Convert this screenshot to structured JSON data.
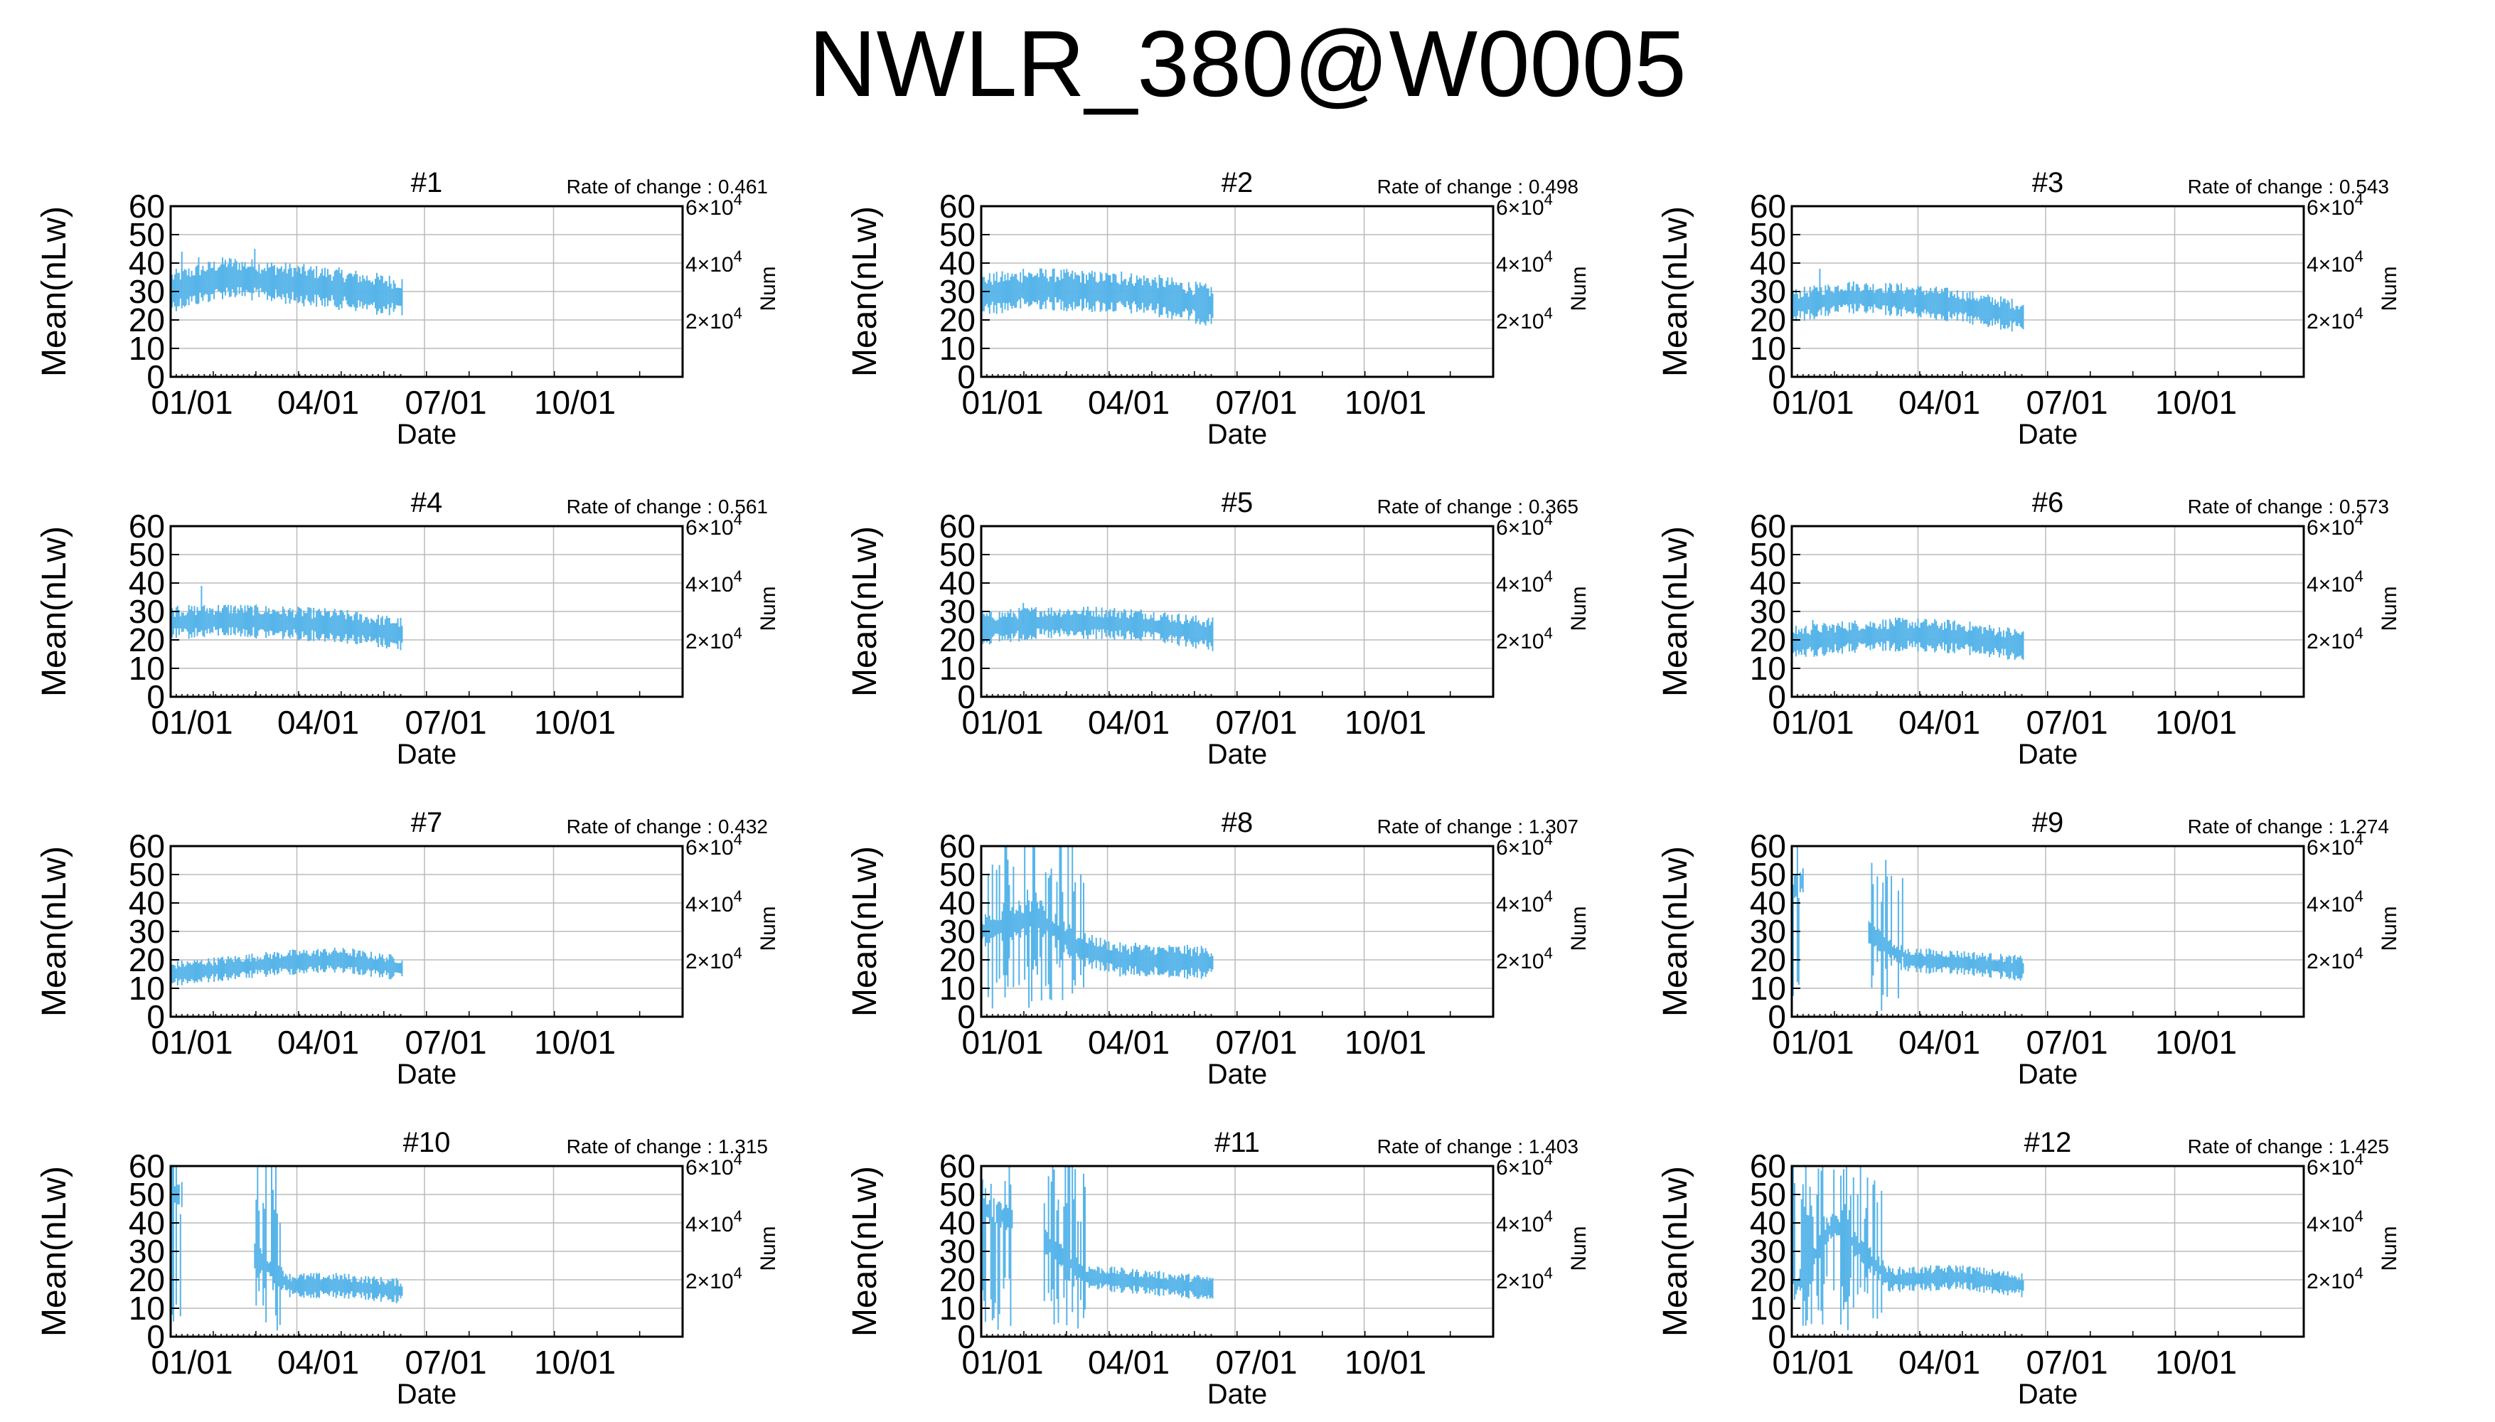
{
  "title": "NWLR_380@W0005",
  "colors": {
    "data": "#56b4e9",
    "grid": "#bbbbbb",
    "axis": "#000000"
  },
  "axes": {
    "xlabel": "Date",
    "ylabel_left": "Mean(nLw)",
    "ylabel_right": "Num",
    "x_ticks": [
      "01/01",
      "04/01",
      "07/01",
      "10/01"
    ],
    "y_ticks": [
      "0",
      "10",
      "20",
      "30",
      "40",
      "50",
      "60"
    ],
    "right_ticks": [
      {
        "base": "2×10",
        "exp": "4"
      },
      {
        "base": "4×10",
        "exp": "4"
      },
      {
        "base": "6×10",
        "exp": "4"
      }
    ]
  },
  "chart_data": [
    {
      "type": "line",
      "title": "#1",
      "rate_label": "Rate of change : 0.461",
      "ylim": [
        0,
        60
      ],
      "xlim_days": [
        0,
        365
      ],
      "end_day": 165,
      "mean": [
        [
          0,
          30
        ],
        [
          40,
          35
        ],
        [
          80,
          33
        ],
        [
          120,
          31
        ],
        [
          165,
          28
        ]
      ],
      "spread": 5,
      "spikes": [
        [
          8,
          44
        ],
        [
          20,
          42
        ],
        [
          60,
          45
        ]
      ]
    },
    {
      "type": "line",
      "title": "#2",
      "rate_label": "Rate of change : 0.498",
      "ylim": [
        0,
        60
      ],
      "xlim_days": [
        0,
        365
      ],
      "end_day": 165,
      "mean": [
        [
          0,
          29
        ],
        [
          40,
          31
        ],
        [
          80,
          30
        ],
        [
          120,
          29
        ],
        [
          165,
          25
        ]
      ],
      "spread": 5,
      "spikes": [
        [
          30,
          38
        ],
        [
          100,
          37
        ]
      ]
    },
    {
      "type": "line",
      "title": "#3",
      "rate_label": "Rate of change : 0.543",
      "ylim": [
        0,
        60
      ],
      "xlim_days": [
        0,
        365
      ],
      "end_day": 165,
      "mean": [
        [
          0,
          25
        ],
        [
          40,
          28
        ],
        [
          80,
          27
        ],
        [
          120,
          25
        ],
        [
          165,
          21
        ]
      ],
      "spread": 4,
      "spikes": [
        [
          20,
          38
        ],
        [
          40,
          33
        ]
      ]
    },
    {
      "type": "line",
      "title": "#4",
      "rate_label": "Rate of change : 0.561",
      "ylim": [
        0,
        60
      ],
      "xlim_days": [
        0,
        365
      ],
      "end_day": 165,
      "mean": [
        [
          0,
          26
        ],
        [
          40,
          27
        ],
        [
          80,
          26
        ],
        [
          120,
          25
        ],
        [
          165,
          22
        ]
      ],
      "spread": 4,
      "spikes": [
        [
          5,
          32
        ],
        [
          22,
          39
        ],
        [
          85,
          30
        ]
      ]
    },
    {
      "type": "line",
      "title": "#5",
      "rate_label": "Rate of change : 0.365",
      "ylim": [
        0,
        60
      ],
      "xlim_days": [
        0,
        365
      ],
      "end_day": 165,
      "mean": [
        [
          0,
          24
        ],
        [
          40,
          26
        ],
        [
          80,
          26
        ],
        [
          120,
          25
        ],
        [
          165,
          22
        ]
      ],
      "spread": 4,
      "spikes": [
        [
          30,
          33
        ],
        [
          110,
          30
        ]
      ]
    },
    {
      "type": "line",
      "title": "#6",
      "rate_label": "Rate of change : 0.573",
      "ylim": [
        0,
        60
      ],
      "xlim_days": [
        0,
        365
      ],
      "end_day": 165,
      "mean": [
        [
          0,
          19
        ],
        [
          40,
          21
        ],
        [
          80,
          22
        ],
        [
          120,
          21
        ],
        [
          165,
          18
        ]
      ],
      "spread": 4,
      "spikes": [
        [
          3,
          25
        ],
        [
          15,
          27
        ]
      ]
    },
    {
      "type": "line",
      "title": "#7",
      "rate_label": "Rate of change : 0.432",
      "ylim": [
        0,
        60
      ],
      "xlim_days": [
        0,
        365
      ],
      "end_day": 165,
      "mean": [
        [
          0,
          15
        ],
        [
          40,
          17
        ],
        [
          80,
          19
        ],
        [
          120,
          20
        ],
        [
          165,
          17
        ]
      ],
      "spread": 3,
      "spikes": [
        [
          130,
          24
        ]
      ]
    },
    {
      "type": "line",
      "title": "#8",
      "rate_label": "Rate of change : 1.307",
      "ylim": [
        0,
        60
      ],
      "xlim_days": [
        0,
        365
      ],
      "end_day": 165,
      "mean": [
        [
          0,
          30
        ],
        [
          40,
          35
        ],
        [
          70,
          24
        ],
        [
          100,
          20
        ],
        [
          165,
          19
        ]
      ],
      "spread": 4,
      "wild_until": 75,
      "spikes": [
        [
          110,
          26
        ]
      ]
    },
    {
      "type": "line",
      "title": "#9",
      "rate_label": "Rate of change : 1.274",
      "ylim": [
        0,
        60
      ],
      "xlim_days": [
        0,
        365
      ],
      "end_day": 165,
      "mean": [
        [
          0,
          45
        ],
        [
          8,
          48
        ],
        [
          80,
          20
        ],
        [
          120,
          19
        ],
        [
          165,
          17
        ]
      ],
      "spread": 3,
      "gaps": [
        [
          8,
          55
        ]
      ],
      "wild_until": 80,
      "spikes": []
    },
    {
      "type": "line",
      "title": "#10",
      "rate_label": "Rate of change : 1.315",
      "ylim": [
        0,
        60
      ],
      "xlim_days": [
        0,
        365
      ],
      "end_day": 165,
      "mean": [
        [
          0,
          50
        ],
        [
          8,
          50
        ],
        [
          85,
          18
        ],
        [
          120,
          18
        ],
        [
          165,
          16
        ]
      ],
      "spread": 3,
      "gaps": [
        [
          8,
          60
        ]
      ],
      "wild_until": 80,
      "spikes": []
    },
    {
      "type": "line",
      "title": "#11",
      "rate_label": "Rate of change : 1.403",
      "ylim": [
        0,
        60
      ],
      "xlim_days": [
        0,
        365
      ],
      "end_day": 165,
      "mean": [
        [
          0,
          45
        ],
        [
          30,
          40
        ],
        [
          75,
          21
        ],
        [
          120,
          19
        ],
        [
          165,
          17
        ]
      ],
      "spread": 3,
      "gaps": [
        [
          22,
          45
        ]
      ],
      "wild_until": 75,
      "spikes": []
    },
    {
      "type": "line",
      "title": "#12",
      "rate_label": "Rate of change : 1.425",
      "ylim": [
        0,
        60
      ],
      "xlim_days": [
        0,
        365
      ],
      "end_day": 165,
      "mean": [
        [
          0,
          15
        ],
        [
          30,
          40
        ],
        [
          70,
          20
        ],
        [
          120,
          21
        ],
        [
          165,
          18
        ]
      ],
      "spread": 3,
      "wild_until": 65,
      "spikes": []
    }
  ]
}
